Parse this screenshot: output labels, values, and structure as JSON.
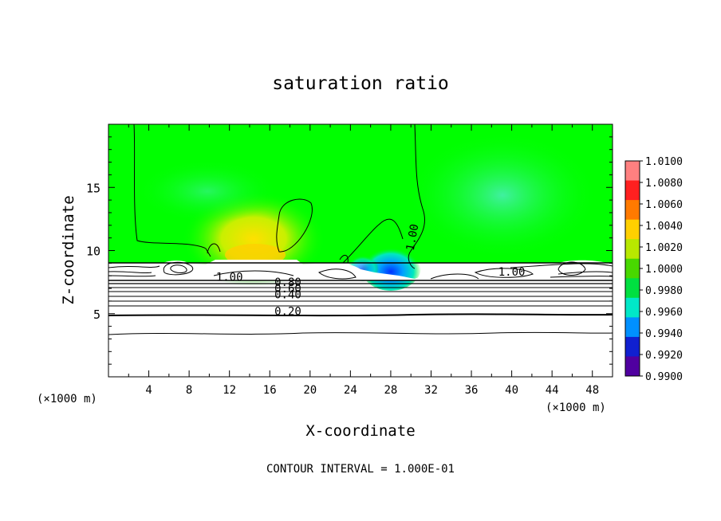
{
  "chart_data": {
    "type": "heatmap",
    "title": "saturation ratio",
    "xlabel": "X-coordinate",
    "ylabel": "Z-coordinate",
    "x_unit": "(×1000 m)",
    "x_unit_right": "(×1000 m)",
    "xlim": [
      0,
      50
    ],
    "ylim": [
      0,
      20
    ],
    "x_ticks": [
      4,
      8,
      12,
      16,
      20,
      24,
      28,
      32,
      36,
      40,
      44,
      48
    ],
    "x_tick_labels": [
      "4",
      "8",
      "12",
      "16",
      "20",
      "24",
      "28",
      "32",
      "36",
      "40",
      "44",
      "48"
    ],
    "y_ticks": [
      5,
      10,
      15
    ],
    "y_tick_labels": [
      "5",
      "10",
      "15"
    ],
    "contour_interval_text": "CONTOUR INTERVAL = 1.000E-01",
    "contour_labels": [
      {
        "text": "1.00",
        "x": 30.5,
        "z": 11.0
      },
      {
        "text": "1.00",
        "x": 12.0,
        "z": 7.6
      },
      {
        "text": "1.00",
        "x": 40.0,
        "z": 8.0
      },
      {
        "text": "0.80",
        "x": 17.8,
        "z": 7.2
      },
      {
        "text": "0.60",
        "x": 17.8,
        "z": 6.7
      },
      {
        "text": "0.40",
        "x": 17.8,
        "z": 6.2
      },
      {
        "text": "0.20",
        "x": 17.8,
        "z": 4.9
      }
    ],
    "colorbar": {
      "values": [
        "1.0100",
        "1.0080",
        "1.0060",
        "1.0040",
        "1.0020",
        "1.0000",
        "0.9980",
        "0.9960",
        "0.9940",
        "0.9920",
        "0.9900"
      ],
      "colors": [
        "#ff8080",
        "#ff2020",
        "#ff7a00",
        "#ffd000",
        "#b8e800",
        "#48d800",
        "#00e040",
        "#00e8c8",
        "#0090ff",
        "#1020d0",
        "#5000a0"
      ]
    },
    "field_base_color": "#00ff00"
  }
}
